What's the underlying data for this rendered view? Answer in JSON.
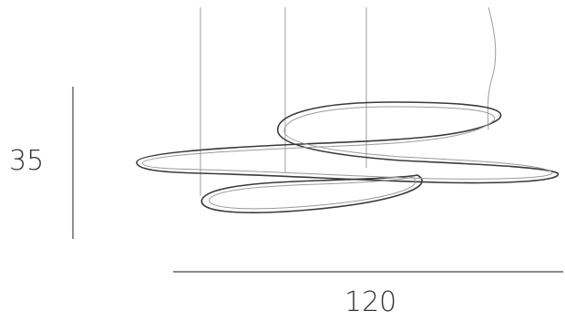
{
  "dimensions": {
    "height_label": "35",
    "width_label": "120"
  },
  "colors": {
    "line": "#2b2b2b",
    "ring_outer": "#3a3a3a",
    "ring_inner": "#9a9a9a",
    "cable": "#9c9c9c",
    "dimension_line": "#444444",
    "dimension_text": "#333333"
  }
}
